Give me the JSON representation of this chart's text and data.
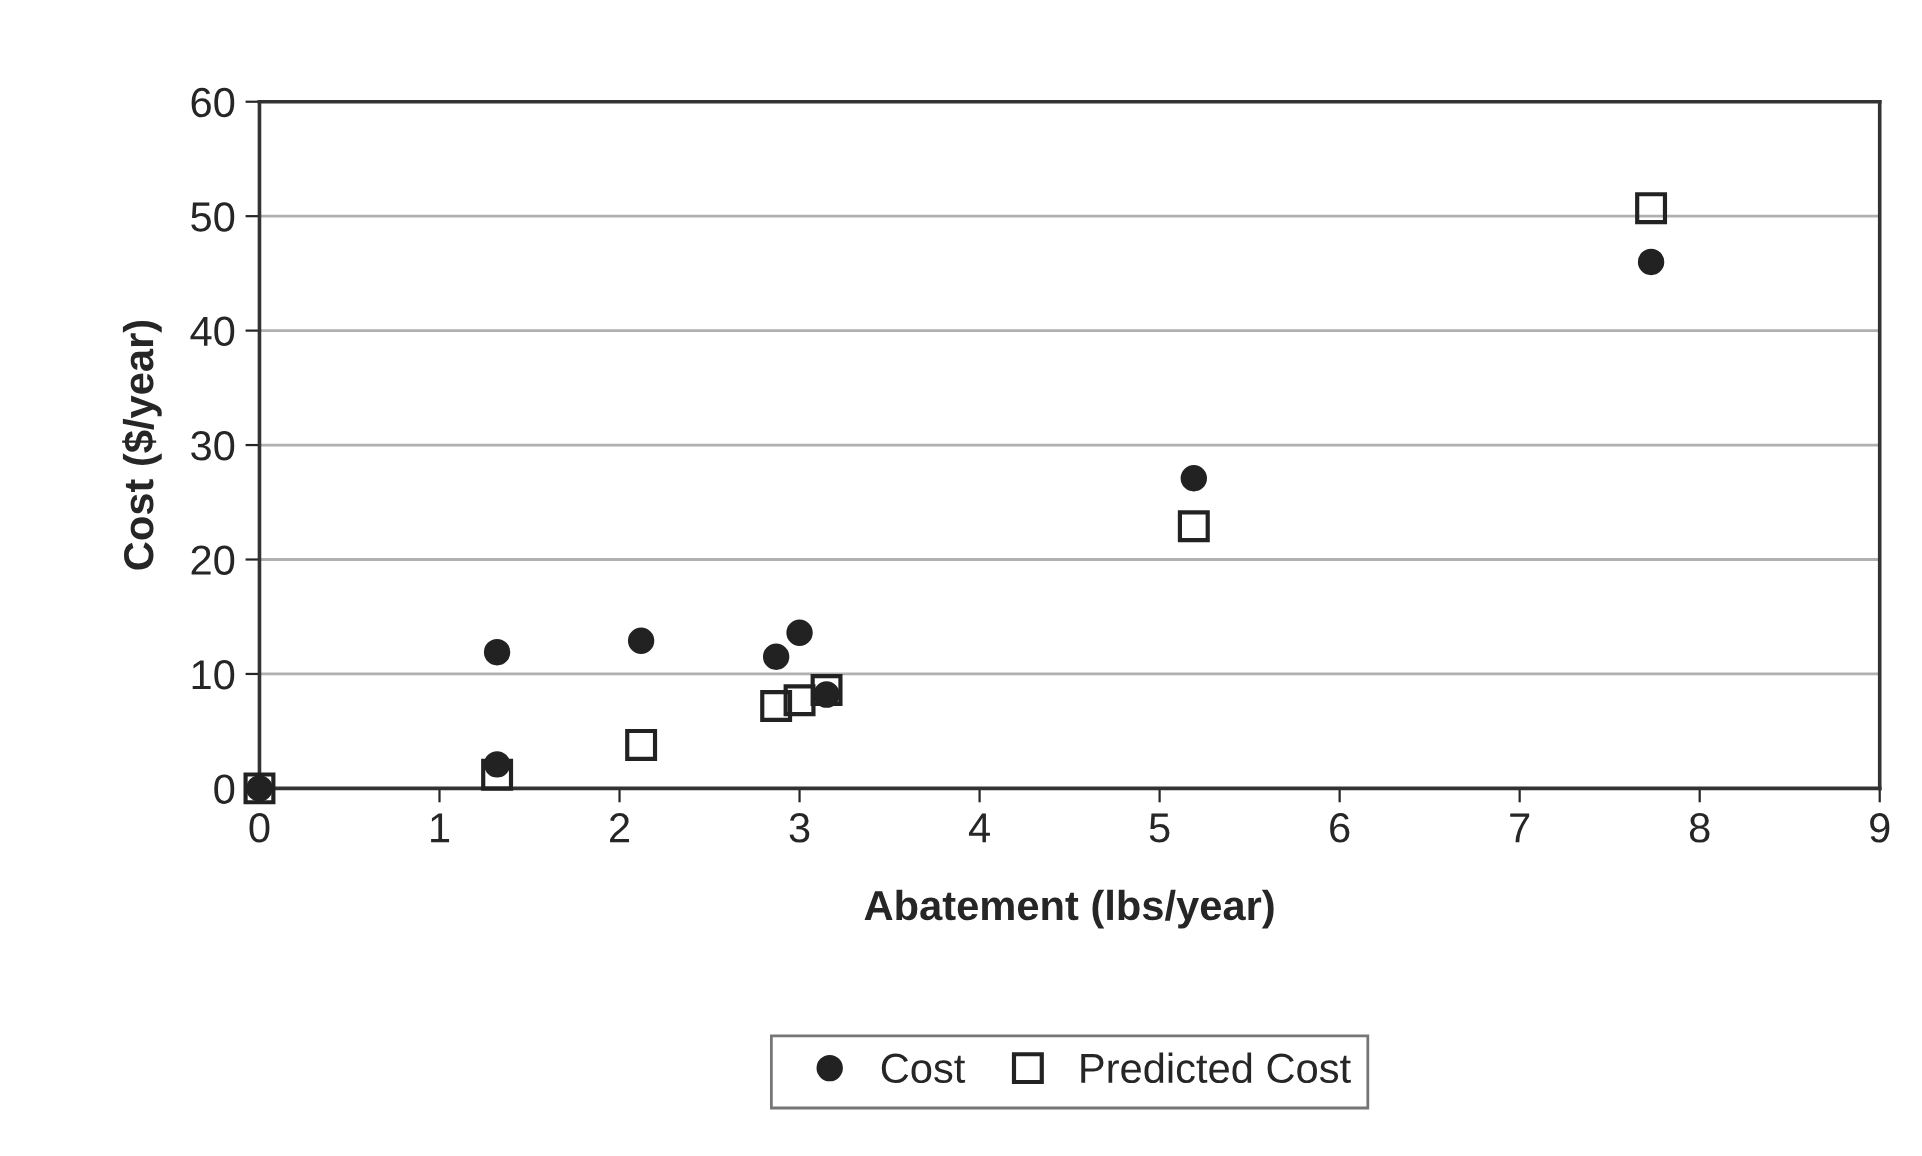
{
  "chart_data": {
    "type": "scatter",
    "xlabel": "Abatement (lbs/year)",
    "ylabel": "Cost ($/year)",
    "xlim": [
      0,
      9
    ],
    "xticks": [
      0,
      1,
      2,
      3,
      4,
      5,
      6,
      7,
      8,
      9
    ],
    "ylim": [
      0,
      60
    ],
    "yticks": [
      0,
      10,
      20,
      30,
      40,
      50,
      60
    ],
    "grid": "y",
    "legend": "bottom",
    "series": [
      {
        "name": "Cost",
        "color": "#222222",
        "marker": "circle",
        "x": [
          0,
          1.32,
          1.32,
          2.12,
          2.87,
          3.0,
          3.15,
          5.19,
          7.73
        ],
        "values": [
          0,
          2.1,
          11.9,
          12.9,
          11.5,
          13.6,
          8.2,
          27.1,
          46.0
        ]
      },
      {
        "name": "Predicted Cost",
        "color": "#222222",
        "marker": "square",
        "x": [
          0,
          1.32,
          2.12,
          2.87,
          3.0,
          3.15,
          5.19,
          7.73
        ],
        "values": [
          0,
          1.2,
          3.8,
          7.2,
          7.7,
          8.6,
          22.9,
          50.7
        ]
      }
    ]
  }
}
